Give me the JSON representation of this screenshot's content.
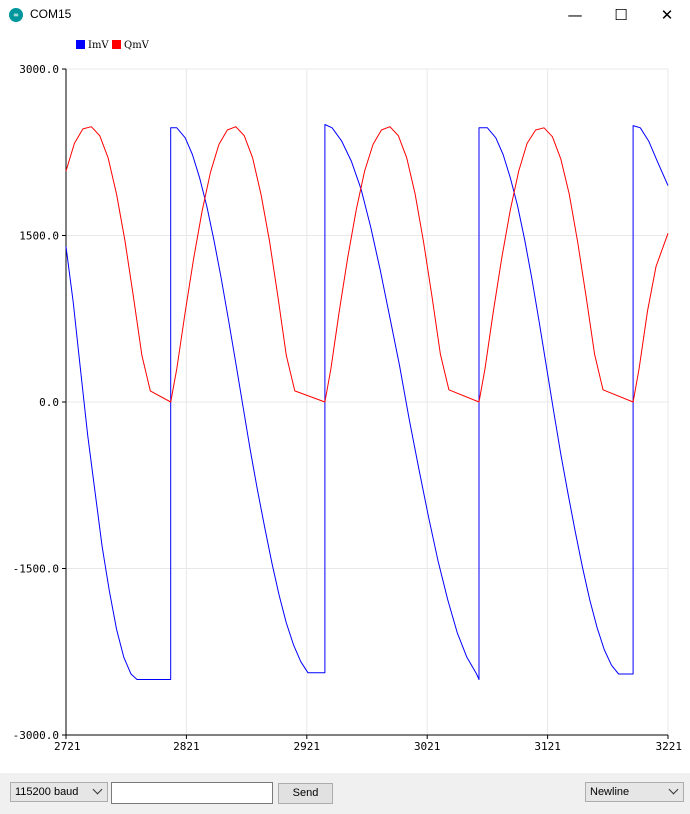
{
  "window": {
    "title": "COM15",
    "minimize_glyph": "—",
    "maximize_glyph": "☐",
    "close_glyph": "✕"
  },
  "toolbar": {
    "baud_value": "115200 baud",
    "send_label": "Send",
    "line_ending_value": "Newline",
    "message_value": ""
  },
  "chart_data": {
    "type": "line",
    "title": "",
    "xlabel": "",
    "ylabel": "",
    "xlim": [
      2721,
      3221
    ],
    "ylim": [
      -3000,
      3000
    ],
    "x_ticks": [
      "2721",
      "2821",
      "2921",
      "3021",
      "3121",
      "3221"
    ],
    "y_ticks": [
      "3000.0",
      "1500.0",
      "0.0",
      "-1500.0",
      "-3000.0"
    ],
    "grid": true,
    "legend_position": "top-left",
    "series": [
      {
        "name": "ImV",
        "color": "#0000ff",
        "points": [
          [
            2721,
            1400
          ],
          [
            2727,
            900
          ],
          [
            2733,
            300
          ],
          [
            2739,
            -300
          ],
          [
            2745,
            -800
          ],
          [
            2751,
            -1300
          ],
          [
            2757,
            -1700
          ],
          [
            2763,
            -2050
          ],
          [
            2769,
            -2300
          ],
          [
            2775,
            -2450
          ],
          [
            2780,
            -2500
          ],
          [
            2808,
            -2500
          ],
          [
            2808,
            2470
          ],
          [
            2813,
            2470
          ],
          [
            2820,
            2380
          ],
          [
            2826,
            2230
          ],
          [
            2832,
            2020
          ],
          [
            2838,
            1760
          ],
          [
            2844,
            1450
          ],
          [
            2850,
            1110
          ],
          [
            2856,
            740
          ],
          [
            2862,
            350
          ],
          [
            2868,
            -40
          ],
          [
            2874,
            -430
          ],
          [
            2880,
            -790
          ],
          [
            2886,
            -1130
          ],
          [
            2892,
            -1450
          ],
          [
            2898,
            -1740
          ],
          [
            2904,
            -1990
          ],
          [
            2910,
            -2190
          ],
          [
            2916,
            -2340
          ],
          [
            2922,
            -2440
          ],
          [
            2936,
            -2440
          ],
          [
            2936,
            2500
          ],
          [
            2942,
            2470
          ],
          [
            2950,
            2350
          ],
          [
            2958,
            2170
          ],
          [
            2966,
            1920
          ],
          [
            2974,
            1580
          ],
          [
            2982,
            1190
          ],
          [
            2990,
            760
          ],
          [
            2998,
            330
          ],
          [
            3006,
            -150
          ],
          [
            3014,
            -600
          ],
          [
            3022,
            -1030
          ],
          [
            3030,
            -1430
          ],
          [
            3038,
            -1780
          ],
          [
            3046,
            -2080
          ],
          [
            3054,
            -2300
          ],
          [
            3062,
            -2450
          ],
          [
            3064,
            -2500
          ],
          [
            3064,
            2470
          ],
          [
            3071,
            2470
          ],
          [
            3078,
            2380
          ],
          [
            3084,
            2230
          ],
          [
            3090,
            2020
          ],
          [
            3096,
            1770
          ],
          [
            3102,
            1460
          ],
          [
            3108,
            1110
          ],
          [
            3114,
            720
          ],
          [
            3120,
            320
          ],
          [
            3126,
            -80
          ],
          [
            3132,
            -470
          ],
          [
            3138,
            -830
          ],
          [
            3144,
            -1170
          ],
          [
            3150,
            -1490
          ],
          [
            3156,
            -1780
          ],
          [
            3162,
            -2030
          ],
          [
            3168,
            -2230
          ],
          [
            3174,
            -2370
          ],
          [
            3180,
            -2450
          ],
          [
            3192,
            -2450
          ],
          [
            3192,
            2490
          ],
          [
            3198,
            2470
          ],
          [
            3205,
            2350
          ],
          [
            3212,
            2170
          ],
          [
            3221,
            1950
          ]
        ]
      },
      {
        "name": "QmV",
        "color": "#ff0000",
        "points": [
          [
            2721,
            2080
          ],
          [
            2728,
            2330
          ],
          [
            2735,
            2460
          ],
          [
            2742,
            2480
          ],
          [
            2749,
            2400
          ],
          [
            2756,
            2200
          ],
          [
            2763,
            1870
          ],
          [
            2770,
            1450
          ],
          [
            2777,
            950
          ],
          [
            2784,
            420
          ],
          [
            2791,
            100
          ],
          [
            2808,
            0
          ],
          [
            2813,
            300
          ],
          [
            2820,
            810
          ],
          [
            2827,
            1290
          ],
          [
            2834,
            1720
          ],
          [
            2841,
            2070
          ],
          [
            2848,
            2320
          ],
          [
            2855,
            2450
          ],
          [
            2862,
            2480
          ],
          [
            2869,
            2400
          ],
          [
            2876,
            2200
          ],
          [
            2883,
            1870
          ],
          [
            2890,
            1450
          ],
          [
            2897,
            950
          ],
          [
            2904,
            420
          ],
          [
            2911,
            100
          ],
          [
            2936,
            0
          ],
          [
            2941,
            300
          ],
          [
            2948,
            820
          ],
          [
            2955,
            1300
          ],
          [
            2962,
            1730
          ],
          [
            2969,
            2080
          ],
          [
            2976,
            2320
          ],
          [
            2983,
            2450
          ],
          [
            2990,
            2480
          ],
          [
            2997,
            2400
          ],
          [
            3004,
            2200
          ],
          [
            3011,
            1870
          ],
          [
            3018,
            1440
          ],
          [
            3025,
            950
          ],
          [
            3032,
            430
          ],
          [
            3039,
            110
          ],
          [
            3064,
            0
          ],
          [
            3069,
            300
          ],
          [
            3076,
            820
          ],
          [
            3083,
            1300
          ],
          [
            3090,
            1730
          ],
          [
            3097,
            2080
          ],
          [
            3104,
            2330
          ],
          [
            3111,
            2450
          ],
          [
            3118,
            2470
          ],
          [
            3125,
            2390
          ],
          [
            3132,
            2190
          ],
          [
            3139,
            1870
          ],
          [
            3146,
            1440
          ],
          [
            3153,
            950
          ],
          [
            3160,
            430
          ],
          [
            3167,
            110
          ],
          [
            3192,
            0
          ],
          [
            3197,
            300
          ],
          [
            3204,
            820
          ],
          [
            3211,
            1220
          ],
          [
            3221,
            1520
          ]
        ]
      }
    ]
  }
}
